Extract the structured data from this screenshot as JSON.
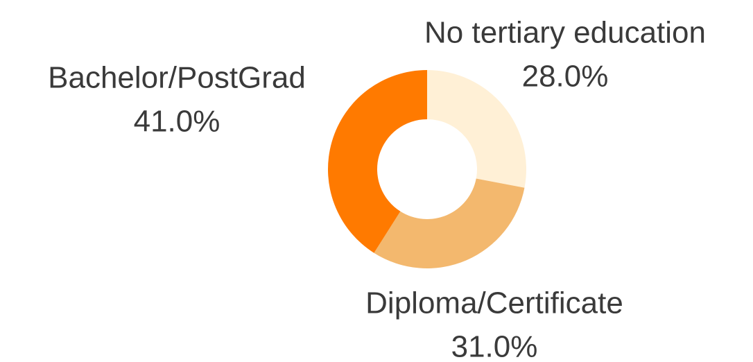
{
  "chart_data": {
    "type": "donut",
    "categories": [
      "No tertiary education",
      "Diploma/Certificate",
      "Bachelor/PostGrad"
    ],
    "values": [
      28,
      31,
      41
    ],
    "value_labels": [
      "28.0%",
      "31.0%",
      "41.0%"
    ],
    "colors": [
      "#fff0d6",
      "#f3b86e",
      "#ff7a00"
    ]
  }
}
